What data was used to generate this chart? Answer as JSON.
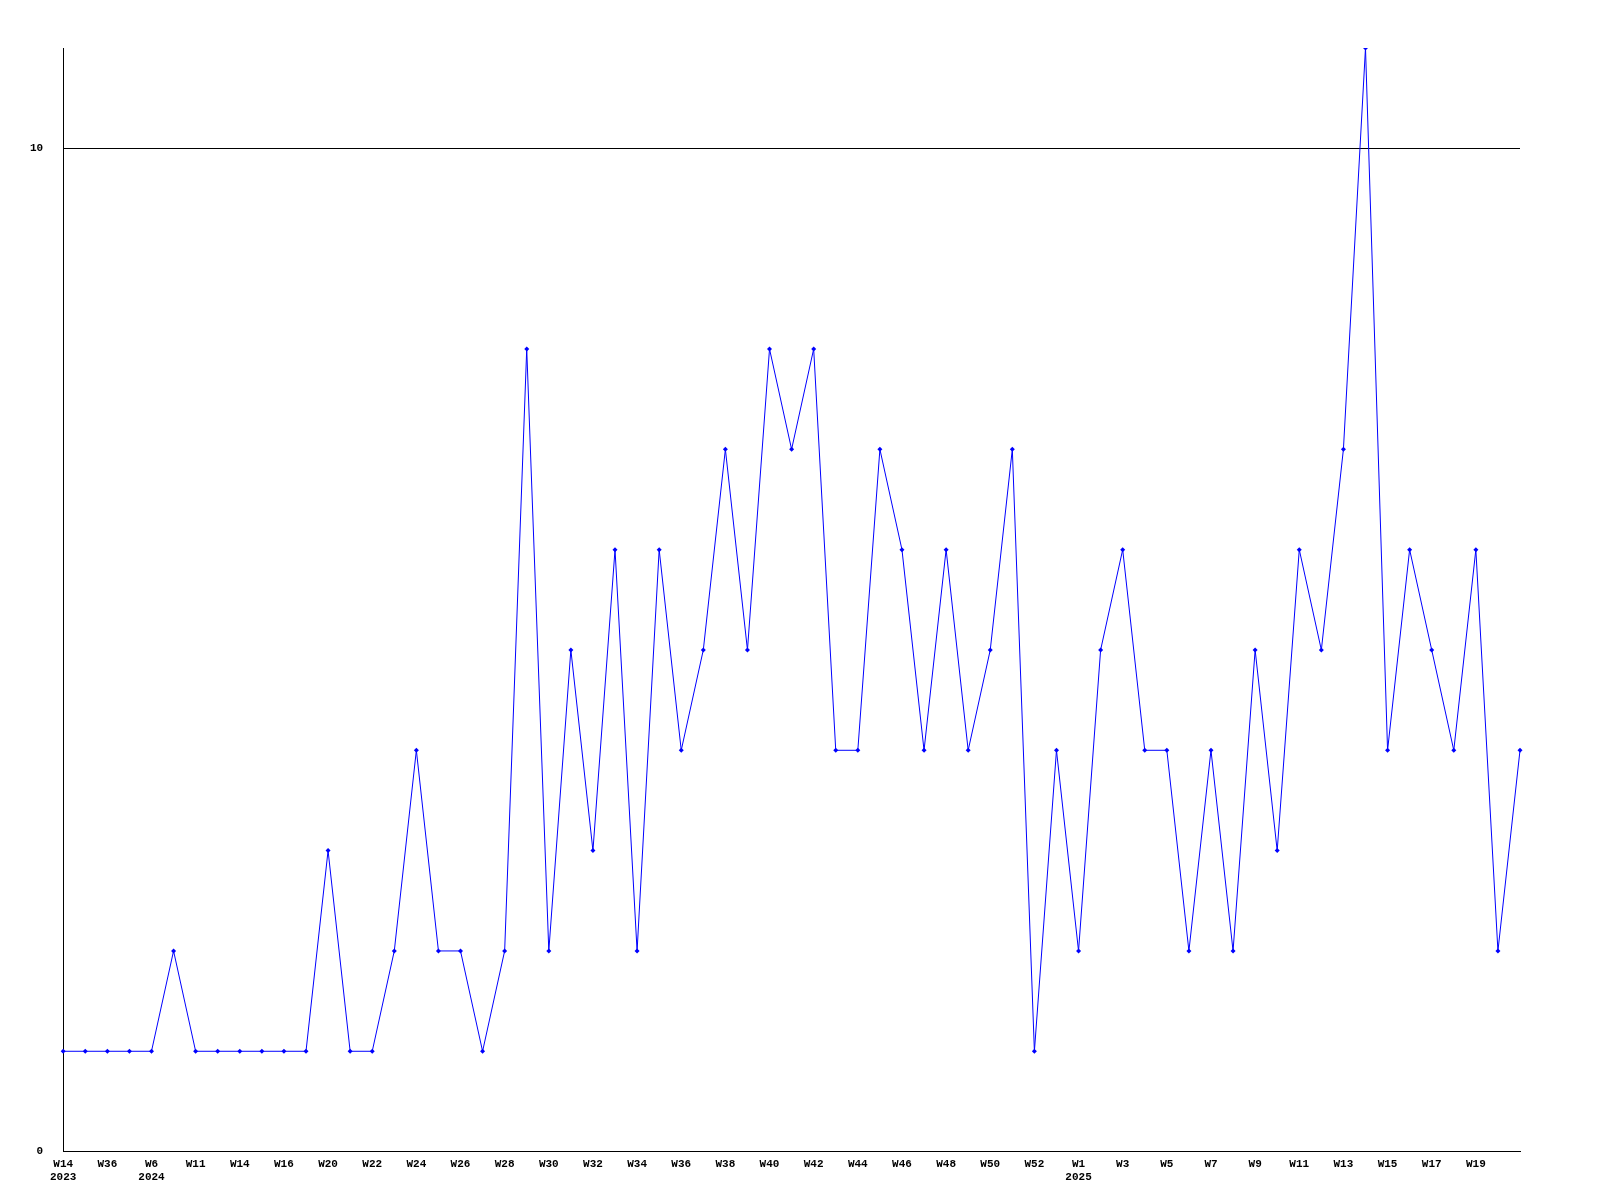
{
  "chart_data": {
    "type": "line",
    "categories": [
      "W14\n2023",
      null,
      "W36",
      null,
      "W6\n2024",
      null,
      "W11",
      null,
      "W14",
      null,
      "W16",
      null,
      "W20",
      null,
      "W22",
      null,
      "W24",
      null,
      "W26",
      null,
      "W28",
      null,
      "W30",
      null,
      "W32",
      null,
      "W34",
      null,
      "W36",
      null,
      "W38",
      null,
      "W40",
      null,
      "W42",
      null,
      "W44",
      null,
      "W46",
      null,
      "W48",
      null,
      "W50",
      null,
      "W52",
      null,
      "W1\n2025",
      null,
      "W3",
      null,
      "W5",
      null,
      "W7",
      null,
      "W9",
      null,
      "W11",
      null,
      "W13",
      null,
      "W15",
      null,
      "W17",
      null,
      "W19",
      null,
      null
    ],
    "series": [
      {
        "color": "#0000ff",
        "values": [
          1,
          1,
          1,
          1,
          1,
          2,
          1,
          1,
          1,
          1,
          1,
          1,
          3,
          1,
          1,
          2,
          4,
          2,
          2,
          1,
          2,
          8,
          2,
          5,
          3,
          6,
          2,
          6,
          4,
          5,
          7,
          5,
          8,
          7,
          8,
          4,
          4,
          7,
          6,
          4,
          6,
          4,
          5,
          7,
          1,
          4,
          2,
          5,
          6,
          4,
          4,
          2,
          4,
          2,
          5,
          3,
          6,
          5,
          7,
          11,
          4,
          6,
          5,
          4,
          6,
          2,
          4
        ]
      }
    ],
    "ylim": [
      0,
      11
    ],
    "yticks": [
      0,
      10
    ],
    "grid": "y",
    "legend": false,
    "marker": "diamond",
    "line_style": "solid"
  }
}
